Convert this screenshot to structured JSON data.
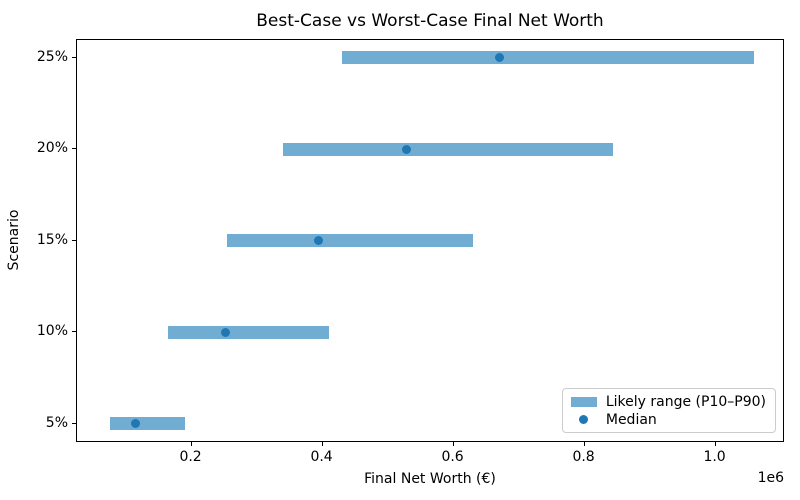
{
  "chart_data": {
    "type": "bar",
    "orientation": "horizontal",
    "title": "Best-Case vs Worst-Case Final Net Worth",
    "xlabel": "Final Net Worth (€)",
    "ylabel": "Scenario",
    "x_offset_label": "1e6",
    "grid": false,
    "legend_position": "lower right",
    "legend": {
      "range_label": "Likely range (P10–P90)",
      "median_label": "Median"
    },
    "categories": [
      "5%",
      "10%",
      "15%",
      "20%",
      "25%"
    ],
    "scenarios": [
      {
        "label": "25%",
        "p10": 430000,
        "median": 670000,
        "p90": 1058000
      },
      {
        "label": "20%",
        "p10": 340000,
        "median": 528000,
        "p90": 844000
      },
      {
        "label": "15%",
        "p10": 254000,
        "median": 393000,
        "p90": 630000
      },
      {
        "label": "10%",
        "p10": 164000,
        "median": 252000,
        "p90": 410000
      },
      {
        "label": "5%",
        "p10": 75000,
        "median": 115000,
        "p90": 190000
      }
    ],
    "series": [
      {
        "name": "P10",
        "values": [
          75000,
          164000,
          254000,
          340000,
          430000
        ]
      },
      {
        "name": "Median",
        "values": [
          115000,
          252000,
          393000,
          528000,
          670000
        ]
      },
      {
        "name": "P90",
        "values": [
          190000,
          410000,
          630000,
          844000,
          1058000
        ]
      }
    ],
    "xlim": [
      25000,
      1106000
    ],
    "x_ticks": [
      200000,
      400000,
      600000,
      800000,
      1000000
    ],
    "x_tick_labels": [
      "0.2",
      "0.4",
      "0.6",
      "0.8",
      "1.0"
    ]
  },
  "colors": {
    "range_bar": "#71add2",
    "median_dot": "#1f77b4",
    "axes_border": "#000000",
    "legend_border": "#cccccc",
    "text": "#000000"
  }
}
